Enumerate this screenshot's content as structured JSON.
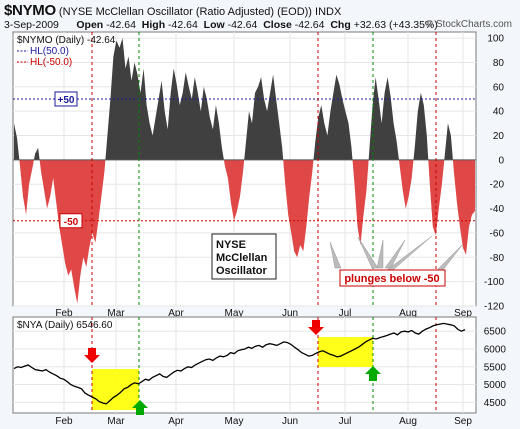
{
  "header": {
    "symbol": "$NYMO",
    "description": "(NYSE McClellan Oscillator (Ratio Adjusted) (EOD))",
    "exchange": "INDX",
    "date": "3-Sep-2009",
    "open_label": "Open",
    "open": "-42.64",
    "high_label": "High",
    "high": "-42.64",
    "low_label": "Low",
    "low": "-42.64",
    "close_label": "Close",
    "close": "-42.64",
    "chg_label": "Chg",
    "chg": "+32.63 (+43.35%)",
    "copyright": "© StockCharts.com"
  },
  "chart_data": [
    {
      "type": "area",
      "legend": [
        "$NYMO (Daily) -42.64",
        "HL(50.0)",
        "HL(-50.0)"
      ],
      "ylim": [
        -120,
        105
      ],
      "y_ticks": [
        100,
        80,
        60,
        40,
        20,
        0,
        -20,
        -40,
        -60,
        -80,
        -100,
        -120
      ],
      "x_tick_labels": [
        "Feb",
        "Mar",
        "Apr",
        "May",
        "Jun",
        "Jul",
        "Aug",
        "Sep"
      ],
      "hlines": [
        {
          "value": 50,
          "label": "+50",
          "color": "#1a1a9c"
        },
        {
          "value": -50,
          "label": "-50",
          "color": "#cc0000"
        }
      ],
      "annotations": [
        "NYSE",
        "McClellan",
        "Oscillator",
        "plunges below -50"
      ],
      "positive_color": "#404040",
      "negative_color": "#e04848",
      "series": [
        {
          "name": "$NYMO",
          "values": [
            30,
            18,
            -5,
            -30,
            -45,
            -20,
            -8,
            5,
            10,
            -10,
            -25,
            -40,
            -30,
            -15,
            -35,
            -55,
            -70,
            -85,
            -95,
            -90,
            -105,
            -118,
            -95,
            -80,
            -88,
            -72,
            -60,
            -68,
            -50,
            -30,
            -10,
            20,
            50,
            85,
            98,
            92,
            100,
            75,
            85,
            65,
            80,
            70,
            55,
            75,
            45,
            30,
            20,
            35,
            50,
            65,
            40,
            25,
            55,
            75,
            62,
            45,
            55,
            72,
            60,
            50,
            68,
            55,
            40,
            60,
            50,
            35,
            25,
            45,
            30,
            10,
            -5,
            -15,
            -35,
            -50,
            -42,
            -30,
            -10,
            15,
            40,
            30,
            55,
            60,
            68,
            50,
            40,
            55,
            70,
            50,
            30,
            10,
            -20,
            -45,
            -60,
            -75,
            -80,
            -70,
            -75,
            -55,
            -30,
            -10,
            15,
            35,
            45,
            30,
            20,
            40,
            55,
            70,
            62,
            50,
            40,
            30,
            10,
            -20,
            -55,
            -70,
            -45,
            -25,
            10,
            45,
            68,
            50,
            30,
            55,
            68,
            52,
            30,
            15,
            -5,
            -25,
            -40,
            -30,
            -15,
            10,
            40,
            55,
            45,
            20,
            -20,
            -55,
            -62,
            -40,
            -20,
            5,
            30,
            20,
            -10,
            -35,
            -55,
            -72,
            -78,
            -55,
            -45,
            -42
          ]
        }
      ]
    },
    {
      "type": "line",
      "legend": [
        "$NYA (Daily) 6546.60"
      ],
      "ylim": [
        4200,
        6900
      ],
      "y_ticks": [
        6500,
        6000,
        5500,
        5000,
        4500
      ],
      "x_tick_labels": [
        "Feb",
        "Mar",
        "Apr",
        "May",
        "Jun",
        "Jul",
        "Aug",
        "Sep"
      ],
      "series": [
        {
          "name": "$NYA",
          "values": [
            5450,
            5500,
            5480,
            5520,
            5550,
            5480,
            5420,
            5400,
            5380,
            5420,
            5350,
            5300,
            5250,
            5180,
            5150,
            5080,
            5000,
            4950,
            4920,
            4880,
            4760,
            4700,
            4650,
            4600,
            4520,
            4480,
            4460,
            4550,
            4640,
            4700,
            4780,
            4880,
            4920,
            5000,
            5050,
            5020,
            5080,
            5150,
            5120,
            5200,
            5250,
            5300,
            5230,
            5200,
            5280,
            5350,
            5400,
            5380,
            5450,
            5500,
            5480,
            5550,
            5600,
            5650,
            5700,
            5720,
            5680,
            5750,
            5800,
            5780,
            5820,
            5900,
            5870,
            5950,
            5980,
            6000,
            6050,
            6020,
            6080,
            6100,
            6050,
            6120,
            6150,
            6130,
            6100,
            6150,
            6200,
            6180,
            6130,
            6050,
            5980,
            5900,
            5850,
            5800,
            5820,
            5880,
            5920,
            5950,
            5900,
            5850,
            5820,
            5780,
            5800,
            5850,
            5900,
            5950,
            6000,
            6050,
            6120,
            6200,
            6250,
            6300,
            6280,
            6320,
            6350,
            6380,
            6420,
            6450,
            6400,
            6480,
            6500,
            6480,
            6520,
            6450,
            6420,
            6500,
            6560,
            6600,
            6650,
            6680,
            6700,
            6720,
            6700,
            6680,
            6650,
            6550,
            6500,
            6546
          ]
        }
      ]
    }
  ]
}
